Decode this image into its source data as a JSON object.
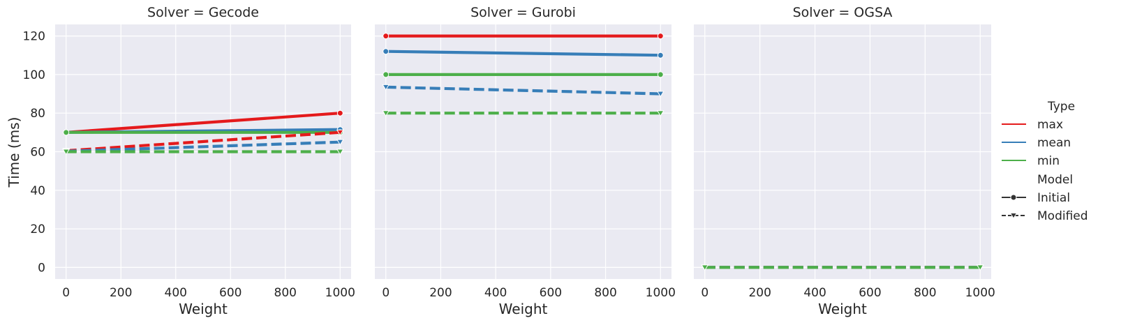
{
  "chart_data": {
    "type": "line",
    "facet_prefix": "Solver = ",
    "ylabel": "Time (ms)",
    "xlabel": "Weight",
    "xlim": [
      -40,
      1040
    ],
    "ylim": [
      -6,
      126
    ],
    "xticks": [
      0,
      200,
      400,
      600,
      800,
      1000
    ],
    "yticks": [
      0,
      20,
      40,
      60,
      80,
      100,
      120
    ],
    "grid": true,
    "colors": {
      "max": "#e41a1c",
      "mean": "#377eb8",
      "min": "#4daf4a"
    },
    "legend": {
      "placement": "right",
      "hue_title": "Type",
      "hue_entries": [
        "max",
        "mean",
        "min"
      ],
      "style_title": "Model",
      "style_entries": [
        "Initial",
        "Modified"
      ]
    },
    "facets": [
      {
        "solver": "Gecode",
        "series": [
          {
            "type": "max",
            "model": "Initial",
            "x": [
              0,
              1000
            ],
            "y": [
              70,
              80
            ]
          },
          {
            "type": "mean",
            "model": "Initial",
            "x": [
              0,
              1000
            ],
            "y": [
              70,
              71.5
            ]
          },
          {
            "type": "min",
            "model": "Initial",
            "x": [
              0,
              1000
            ],
            "y": [
              70,
              70
            ]
          },
          {
            "type": "max",
            "model": "Modified",
            "x": [
              0,
              1000
            ],
            "y": [
              60.5,
              70
            ]
          },
          {
            "type": "mean",
            "model": "Modified",
            "x": [
              0,
              1000
            ],
            "y": [
              60.2,
              65
            ]
          },
          {
            "type": "min",
            "model": "Modified",
            "x": [
              0,
              1000
            ],
            "y": [
              60,
              60
            ]
          }
        ]
      },
      {
        "solver": "Gurobi",
        "series": [
          {
            "type": "max",
            "model": "Initial",
            "x": [
              0,
              1000
            ],
            "y": [
              120,
              120
            ]
          },
          {
            "type": "mean",
            "model": "Initial",
            "x": [
              0,
              1000
            ],
            "y": [
              112,
              110
            ]
          },
          {
            "type": "min",
            "model": "Initial",
            "x": [
              0,
              1000
            ],
            "y": [
              100,
              100
            ]
          },
          {
            "type": "mean",
            "model": "Modified",
            "x": [
              0,
              1000
            ],
            "y": [
              93.5,
              90
            ]
          },
          {
            "type": "min",
            "model": "Modified",
            "x": [
              0,
              1000
            ],
            "y": [
              80,
              80
            ]
          }
        ]
      },
      {
        "solver": "OGSA",
        "series": [
          {
            "type": "max",
            "model": "Modified",
            "x": [
              0,
              1000
            ],
            "y": [
              0,
              0
            ]
          },
          {
            "type": "mean",
            "model": "Modified",
            "x": [
              0,
              1000
            ],
            "y": [
              0,
              0
            ]
          },
          {
            "type": "min",
            "model": "Modified",
            "x": [
              0,
              1000
            ],
            "y": [
              0,
              0
            ]
          }
        ]
      }
    ]
  }
}
